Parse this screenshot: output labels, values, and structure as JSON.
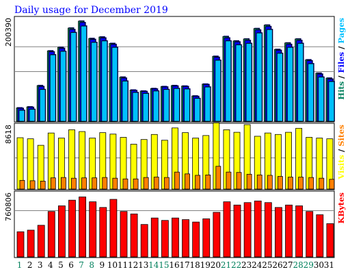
{
  "chart_data": {
    "type": "bar",
    "title": "Daily usage for December 2019",
    "categories": [
      "1",
      "2",
      "3",
      "4",
      "5",
      "6",
      "7",
      "8",
      "9",
      "10",
      "11",
      "12",
      "13",
      "14",
      "15",
      "16",
      "17",
      "18",
      "19",
      "20",
      "21",
      "22",
      "23",
      "24",
      "25",
      "26",
      "27",
      "28",
      "29",
      "30",
      "31"
    ],
    "weekend_days": [
      1,
      7,
      8,
      14,
      15,
      21,
      22,
      28,
      29
    ],
    "colors": {
      "title": "#0000ff",
      "hits": "#00805c",
      "files": "#0000ff",
      "pages": "#00c0ff",
      "visits": "#ffff00",
      "sites": "#ff8000",
      "kbytes": "#ff0000",
      "weekday": "#000000",
      "weekend": "#00805c"
    },
    "panels": [
      {
        "id": "hits-files-pages",
        "ymax_label": "200390",
        "ymax": 200390,
        "gridlines": [
          0.5,
          0.75
        ],
        "legend": [
          {
            "text": "Hits",
            "color": "#00805c"
          },
          {
            "text": " / ",
            "color": "#000000"
          },
          {
            "text": "Files",
            "color": "#0000ff"
          },
          {
            "text": " / ",
            "color": "#000000"
          },
          {
            "text": "Pages",
            "color": "#00c0ff"
          }
        ],
        "series": [
          {
            "name": "Hits",
            "values": [
              27000,
              29000,
              72000,
              142000,
              149000,
              188000,
              202000,
              167000,
              170000,
              157000,
              89000,
              63000,
              61000,
              66000,
              70000,
              72000,
              71000,
              51000,
              75000,
              131000,
              171000,
              162000,
              166000,
              187000,
              194000,
              145000,
              158000,
              166000,
              124000,
              97000,
              87000
            ]
          },
          {
            "name": "Files",
            "values": [
              26000,
              28000,
              70000,
              140000,
              147000,
              185000,
              199000,
              165000,
              168000,
              155000,
              87000,
              62000,
              60000,
              65000,
              69000,
              71000,
              70000,
              50000,
              74000,
              129000,
              168000,
              160000,
              163000,
              184000,
              191000,
              143000,
              155000,
              163000,
              122000,
              95000,
              85000
            ]
          },
          {
            "name": "Pages",
            "values": [
              22000,
              24000,
              64000,
              134000,
              141000,
              179000,
              192000,
              159000,
              162000,
              149000,
              81000,
              58000,
              56000,
              61000,
              64000,
              66000,
              65000,
              46000,
              69000,
              123000,
              162000,
              154000,
              157000,
              178000,
              185000,
              137000,
              149000,
              157000,
              116000,
              89000,
              80000
            ]
          }
        ]
      },
      {
        "id": "visits-sites",
        "ymax_label": "8618",
        "ymax": 8618,
        "gridlines": [
          0.5
        ],
        "legend": [
          {
            "text": "Visits",
            "color": "#ffff00"
          },
          {
            "text": " / ",
            "color": "#000000"
          },
          {
            "text": "Sites",
            "color": "#ff8000"
          }
        ],
        "series": [
          {
            "name": "Visits",
            "values": [
              7100,
              6950,
              6050,
              7750,
              7050,
              8200,
              7950,
              7050,
              7800,
              7600,
              7150,
              6200,
              6850,
              7550,
              6750,
              8450,
              7800,
              7050,
              7400,
              9150,
              8200,
              7850,
              8900,
              7300,
              7750,
              7550,
              7850,
              8400,
              7150,
              7050,
              6950
            ]
          },
          {
            "name": "Sites",
            "values": [
              1200,
              1150,
              1100,
              1550,
              1600,
              1500,
              1550,
              1550,
              1600,
              1500,
              1400,
              1400,
              1600,
              1650,
              1600,
              2350,
              2100,
              1900,
              1950,
              3150,
              2350,
              2300,
              2050,
              1950,
              1900,
              1750,
              1650,
              1650,
              1600,
              1500,
              1350
            ]
          }
        ]
      },
      {
        "id": "kbytes",
        "ymax_label": "760806",
        "ymax": 760806,
        "gridlines": [
          0.75
        ],
        "legend": [
          {
            "text": "KBytes",
            "color": "#ff0000"
          }
        ],
        "series": [
          {
            "name": "KBytes",
            "values": [
              310000,
              330000,
              390000,
              560000,
              630000,
              700000,
              740000,
              680000,
              610000,
              710000,
              560000,
              530000,
              400000,
              480000,
              450000,
              480000,
              460000,
              430000,
              470000,
              550000,
              680000,
              640000,
              670000,
              690000,
              670000,
              610000,
              640000,
              630000,
              560000,
              520000,
              410000
            ]
          }
        ]
      }
    ]
  }
}
